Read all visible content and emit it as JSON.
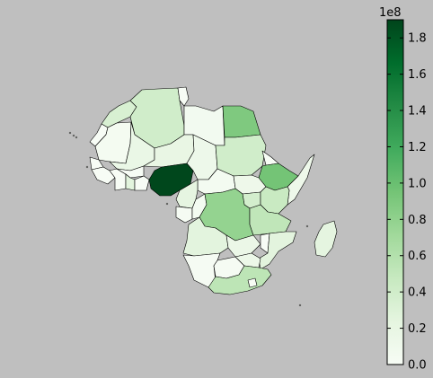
{
  "map": {
    "title": "",
    "colormap": "Greens",
    "background_color": "#bfbfbf",
    "regions": [
      {
        "name": "Nigeria",
        "value": 188000000.0
      },
      {
        "name": "Ethiopia",
        "value": 95000000.0
      },
      {
        "name": "Egypt",
        "value": 89000000.0
      },
      {
        "name": "DR Congo",
        "value": 78000000.0
      },
      {
        "name": "South Africa",
        "value": 54000000.0
      },
      {
        "name": "Tanzania",
        "value": 52000000.0
      },
      {
        "name": "Kenya",
        "value": 46000000.0
      },
      {
        "name": "Algeria",
        "value": 40000000.0
      },
      {
        "name": "Sudan",
        "value": 40000000.0
      },
      {
        "name": "Uganda",
        "value": 38000000.0
      },
      {
        "name": "Morocco",
        "value": 34000000.0
      },
      {
        "name": "Angola",
        "value": 25000000.0
      },
      {
        "name": "Mozambique",
        "value": 25000000.0
      },
      {
        "name": "Madagascar",
        "value": 24000000.0
      },
      {
        "name": "Ghana",
        "value": 26000000.0
      },
      {
        "name": "Niger",
        "value": 19000000.0
      },
      {
        "name": "Mali",
        "value": 17000000.0
      },
      {
        "name": "Chad",
        "value": 13000000.0
      },
      {
        "name": "South Sudan",
        "value": 12000000.0
      },
      {
        "name": "Somalia",
        "value": 12000000.0
      },
      {
        "name": "Libya",
        "value": 6000000.0
      },
      {
        "name": "Namibia",
        "value": 2500000.0
      },
      {
        "name": "Botswana",
        "value": 2000000.0
      },
      {
        "name": "Zambia",
        "value": 16000000.0
      },
      {
        "name": "Zimbabwe",
        "value": 15000000.0
      },
      {
        "name": "Cameroon",
        "value": 23000000.0
      },
      {
        "name": "Central African Rep.",
        "value": 5000000.0
      },
      {
        "name": "Mauritania",
        "value": 4000000.0
      },
      {
        "name": "Western Sahara",
        "value": 500000.0
      },
      {
        "name": "Gabon",
        "value": 2000000.0
      },
      {
        "name": "Congo",
        "value": 5000000.0
      }
    ]
  },
  "chart_data": {
    "type": "heatmap",
    "colorbar": {
      "min": 0.0,
      "max": 1.9,
      "ticks": [
        0.0,
        0.2,
        0.4,
        0.6,
        0.8,
        1.0,
        1.2,
        1.4,
        1.6,
        1.8
      ],
      "tick_labels": [
        "0.0",
        "0.2",
        "0.4",
        "0.6",
        "0.8",
        "1.0",
        "1.2",
        "1.4",
        "1.6",
        "1.8"
      ],
      "exponent_label": "1e8",
      "placement": "right"
    }
  }
}
